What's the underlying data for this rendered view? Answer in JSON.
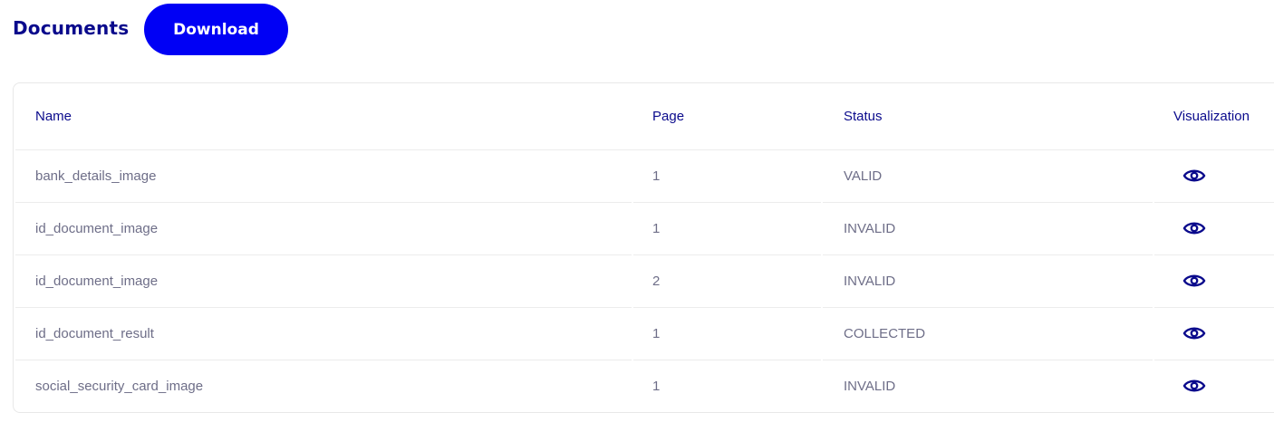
{
  "header": {
    "title": "Documents",
    "download_label": "Download"
  },
  "colors": {
    "accent": "#0000f5",
    "heading": "#0a0a8c",
    "text": "#6e6e88"
  },
  "table": {
    "columns": [
      "Name",
      "Page",
      "Status",
      "Visualization"
    ],
    "rows": [
      {
        "name": "bank_details_image",
        "page": "1",
        "status": "VALID",
        "icon": "eye-icon"
      },
      {
        "name": "id_document_image",
        "page": "1",
        "status": "INVALID",
        "icon": "eye-icon"
      },
      {
        "name": "id_document_image",
        "page": "2",
        "status": "INVALID",
        "icon": "eye-icon"
      },
      {
        "name": "id_document_result",
        "page": "1",
        "status": "COLLECTED",
        "icon": "eye-icon"
      },
      {
        "name": "social_security_card_image",
        "page": "1",
        "status": "INVALID",
        "icon": "eye-icon"
      }
    ]
  }
}
